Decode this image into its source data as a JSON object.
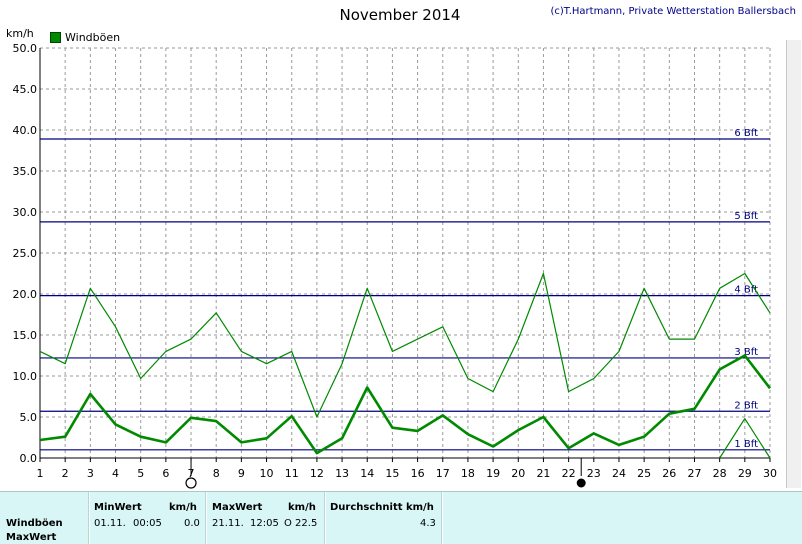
{
  "header": {
    "title": "November 2014",
    "credit": "(c)T.Hartmann, Private Wetterstation Ballersbach",
    "unit": "km/h",
    "legend_label": "Windböen"
  },
  "colors": {
    "series": "#008a00",
    "beaufort": "#000080",
    "grid": "#9a9a9a",
    "panel": "#d8f6f6"
  },
  "chart_data": {
    "type": "line",
    "title": "November 2014",
    "ylabel": "km/h",
    "xlabel": "",
    "ylim": [
      0,
      50
    ],
    "ytick_labels": [
      "0.0",
      "5.0",
      "10.0",
      "15.0",
      "20.0",
      "25.0",
      "30.0",
      "35.0",
      "40.0",
      "45.0",
      "50.0"
    ],
    "x": [
      1,
      2,
      3,
      4,
      5,
      6,
      7,
      8,
      9,
      10,
      11,
      12,
      13,
      14,
      15,
      16,
      17,
      18,
      19,
      20,
      21,
      22,
      23,
      24,
      25,
      26,
      27,
      28,
      29,
      30
    ],
    "series": [
      {
        "name": "Windböen",
        "style": "thin",
        "values": [
          13.0,
          11.5,
          20.7,
          16.0,
          9.7,
          13.0,
          14.5,
          17.7,
          13.0,
          11.5,
          13.0,
          5.0,
          11.5,
          20.7,
          13.0,
          14.5,
          16.0,
          9.7,
          8.1,
          14.5,
          22.5,
          8.1,
          9.7,
          13.0,
          20.7,
          14.5,
          14.5,
          20.7,
          22.5,
          17.7
        ]
      },
      {
        "name": "",
        "style": "thick",
        "values": [
          2.2,
          2.6,
          7.8,
          4.1,
          2.6,
          1.9,
          4.9,
          4.5,
          1.9,
          2.4,
          5.1,
          0.6,
          2.4,
          8.6,
          3.7,
          3.3,
          5.2,
          2.9,
          1.4,
          3.4,
          5.0,
          1.2,
          3.0,
          1.6,
          2.6,
          5.4,
          6.0,
          10.8,
          12.5,
          8.5
        ]
      },
      {
        "name": "",
        "style": "thin",
        "values": [
          null,
          null,
          null,
          null,
          null,
          null,
          null,
          null,
          null,
          null,
          null,
          null,
          null,
          null,
          null,
          null,
          null,
          null,
          null,
          null,
          null,
          null,
          null,
          null,
          null,
          null,
          null,
          0.0,
          4.8,
          0.0
        ]
      }
    ],
    "reference_lines": [
      {
        "label": "1 Bft",
        "value": 1.0
      },
      {
        "label": "2 Bft",
        "value": 5.7
      },
      {
        "label": "3 Bft",
        "value": 12.2
      },
      {
        "label": "4 Bft",
        "value": 19.8
      },
      {
        "label": "5 Bft",
        "value": 28.8
      },
      {
        "label": "6 Bft",
        "value": 38.9
      }
    ],
    "moon_markers": [
      {
        "day": 7,
        "phase": "full"
      },
      {
        "day": 22.5,
        "phase": "new"
      }
    ],
    "grid": true,
    "legend_position": "top-left"
  },
  "stats": {
    "row_label_1": "Windböen",
    "row_label_2": "MaxWert",
    "min_header": "MinWert",
    "min_unit": "km/h",
    "min_date": "01.11.",
    "min_time": "00:05",
    "min_value": "0.0",
    "max_header": "MaxWert",
    "max_unit": "km/h",
    "max_date": "21.11.",
    "max_time": "12:05",
    "max_value": "O 22.5",
    "avg_header": "Durchschnitt km/h",
    "avg_value": "4.3"
  }
}
